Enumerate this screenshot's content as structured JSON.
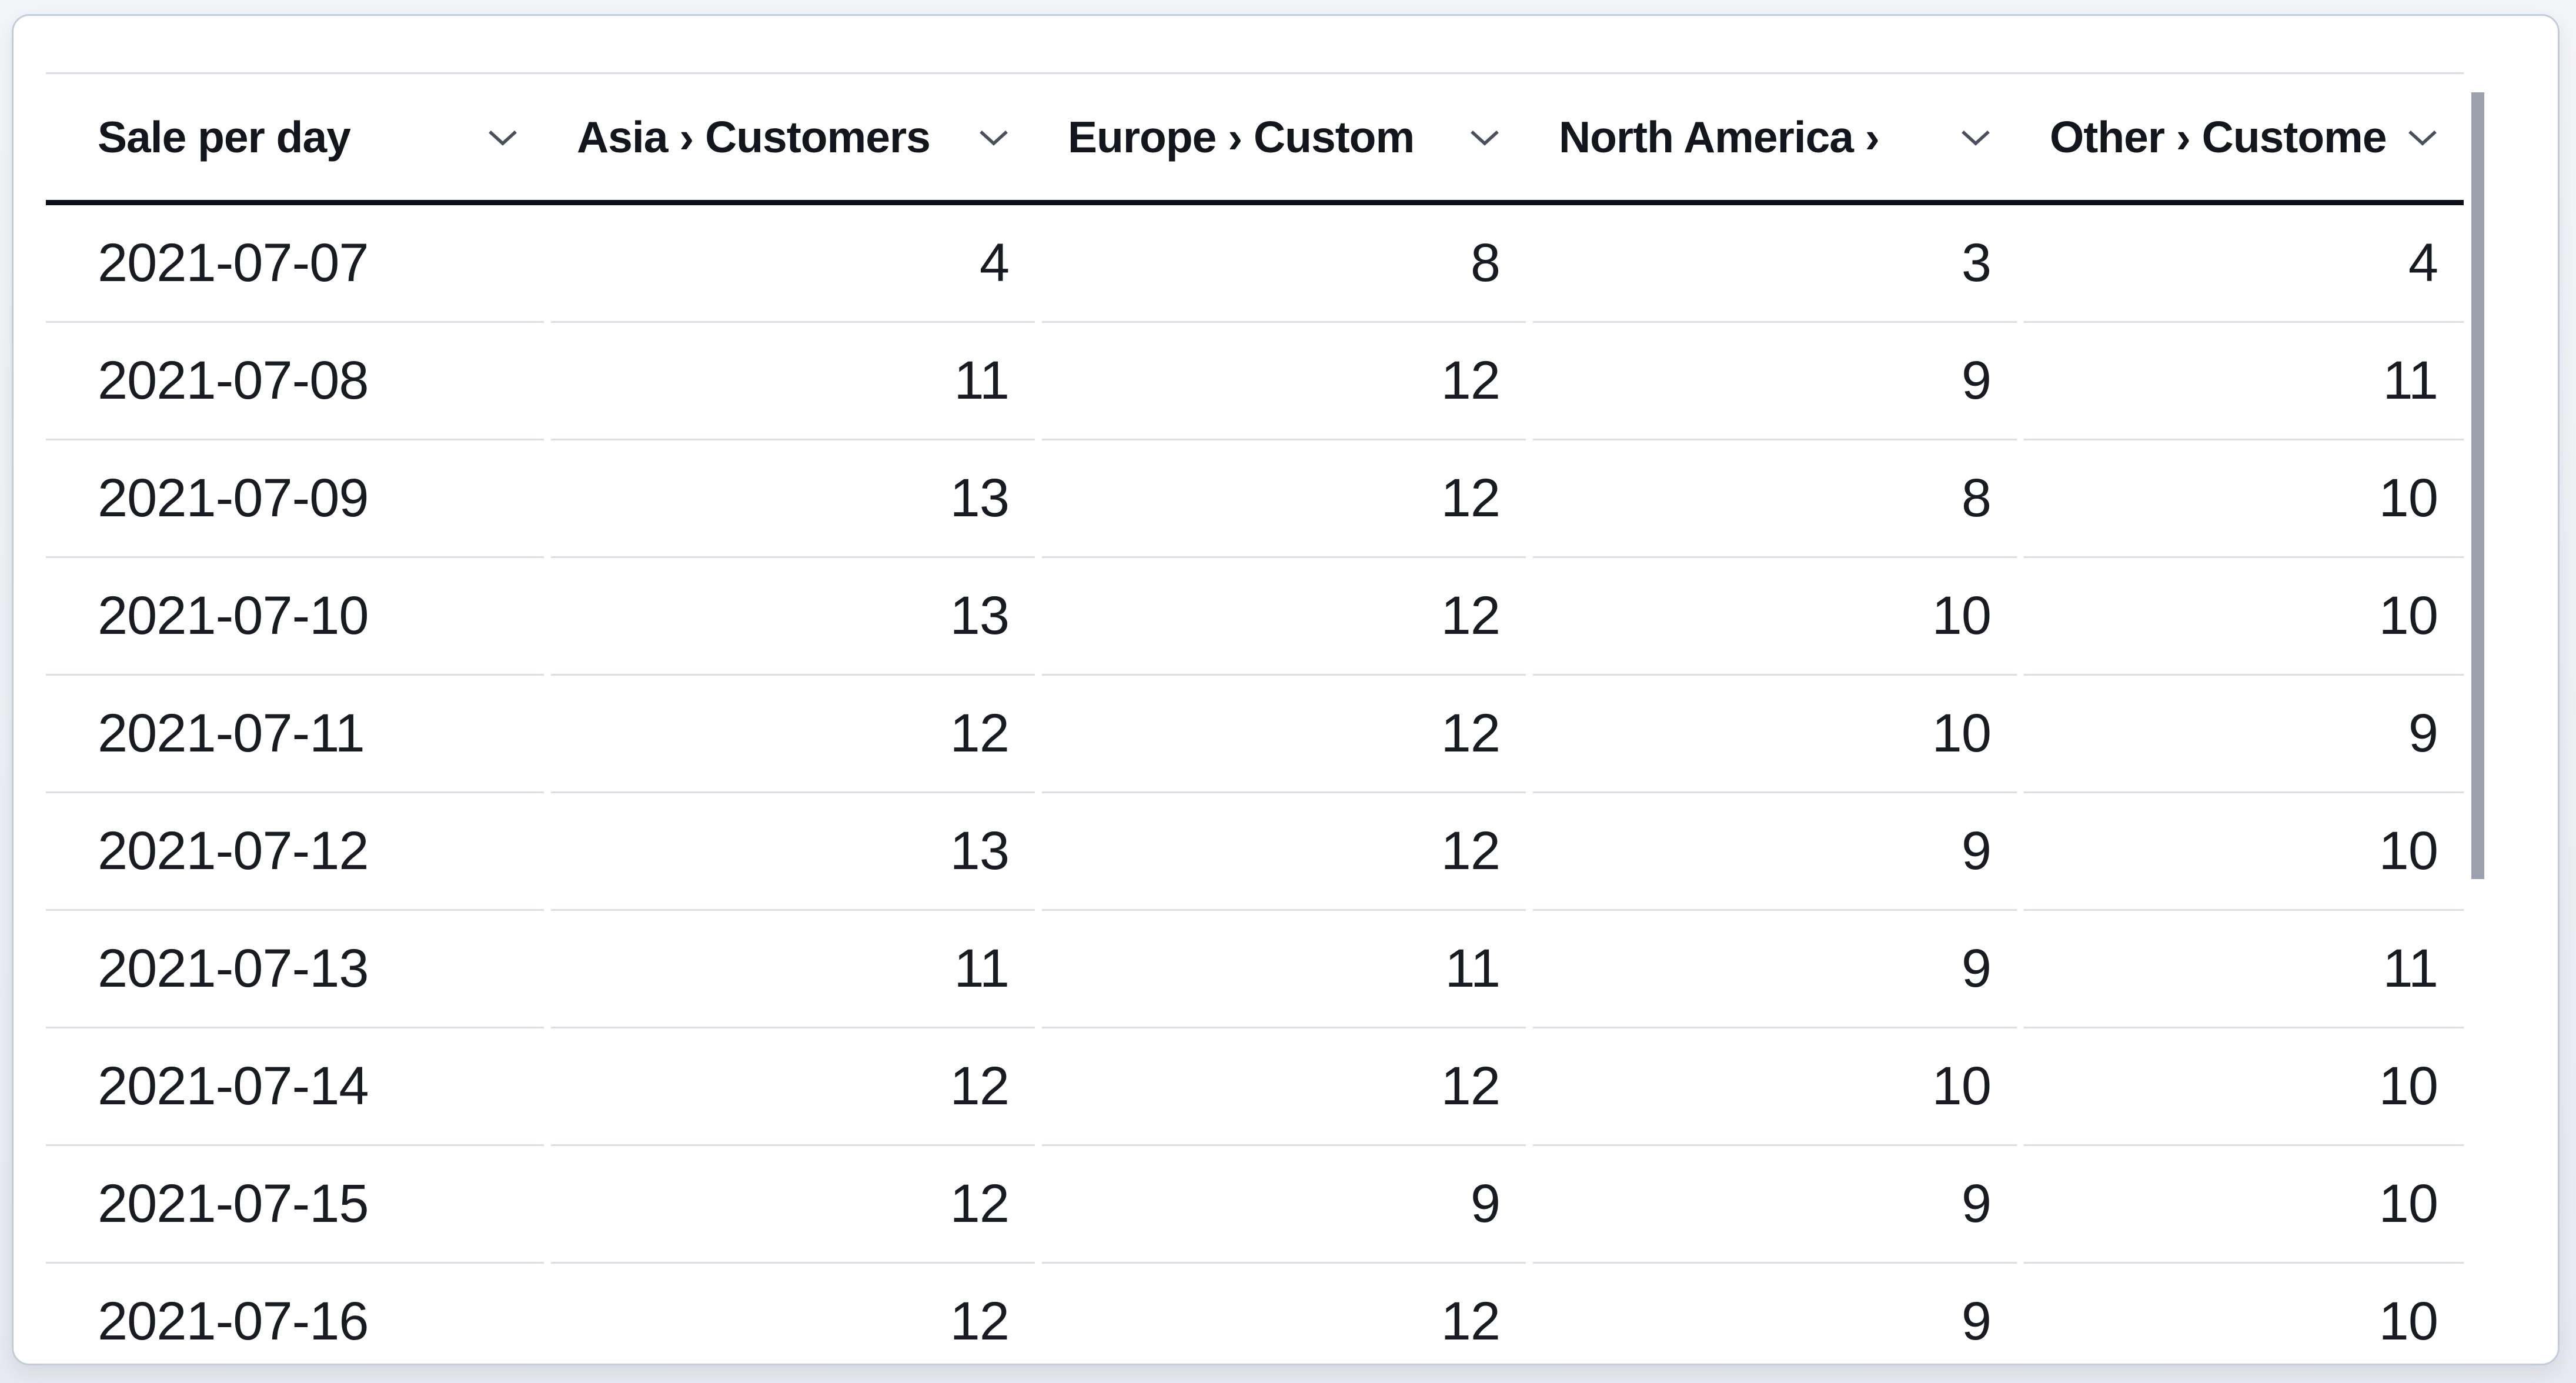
{
  "card": {
    "background": "#ffffff",
    "border_color": "#c3ccdb"
  },
  "table": {
    "columns": [
      {
        "id": "sale-per-day",
        "label": "Sale per day",
        "align": "left"
      },
      {
        "id": "asia-customers",
        "label": "Asia › Customers",
        "align": "right"
      },
      {
        "id": "europe-customers",
        "label": "Europe › Custom",
        "align": "right"
      },
      {
        "id": "north-america-customers",
        "label": "North America ›",
        "align": "right"
      },
      {
        "id": "other-customers",
        "label": "Other › Custome",
        "align": "right"
      }
    ],
    "rows": [
      [
        "2021-07-07",
        "4",
        "8",
        "3",
        "4"
      ],
      [
        "2021-07-08",
        "11",
        "12",
        "9",
        "11"
      ],
      [
        "2021-07-09",
        "13",
        "12",
        "8",
        "10"
      ],
      [
        "2021-07-10",
        "13",
        "12",
        "10",
        "10"
      ],
      [
        "2021-07-11",
        "12",
        "12",
        "10",
        "9"
      ],
      [
        "2021-07-12",
        "13",
        "12",
        "9",
        "10"
      ],
      [
        "2021-07-13",
        "11",
        "11",
        "9",
        "11"
      ],
      [
        "2021-07-14",
        "12",
        "12",
        "10",
        "10"
      ],
      [
        "2021-07-15",
        "12",
        "9",
        "9",
        "10"
      ],
      [
        "2021-07-16",
        "12",
        "12",
        "9",
        "10"
      ]
    ]
  },
  "icons": {
    "header_sort": "chevron-down"
  },
  "colors": {
    "page_background": "#edeff3",
    "separator": "#d9dee7",
    "header_underline": "#0d1019",
    "header_text": "#14161e",
    "body_text": "#181b22",
    "chevron": "#4a505b",
    "scrollbar_thumb": "#9aa1ad"
  }
}
